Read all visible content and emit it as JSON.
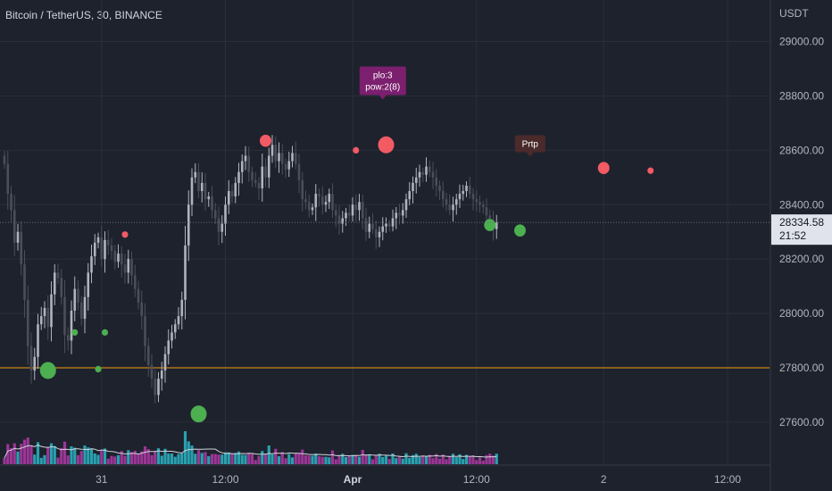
{
  "header": {
    "title": "Bitcoin / TetherUS, 30, BINANCE"
  },
  "axis": {
    "currency": "USDT"
  },
  "colors": {
    "background": "#1e222d",
    "candle": "#b0b3bd",
    "candle_dark": "#4a4e59",
    "support_line": "#f59e0b",
    "bear_marker": "#f25a64",
    "bull_marker": "#4caf50",
    "vol_purple": "#b23aa8",
    "vol_teal": "#2bb6c7",
    "label_box": "#7b1f6e",
    "label_box2": "#4a2a2a"
  },
  "chart_data": {
    "type": "candlestick",
    "ylim": [
      27570,
      29120
    ],
    "y_ticks": [
      27600,
      27800,
      28000,
      28200,
      28400,
      28600,
      28800,
      29000
    ],
    "y_tick_labels": [
      "27600.00",
      "27800.00",
      "28000.00",
      "28200.00",
      "28400.00",
      "28600.00",
      "28800.00",
      "29000.00"
    ],
    "x_labels": [
      {
        "bar": 29,
        "text": "31",
        "bold": false
      },
      {
        "bar": 66,
        "text": "12:00",
        "bold": false
      },
      {
        "bar": 104,
        "text": "Apr",
        "bold": true
      },
      {
        "bar": 141,
        "text": "12:00",
        "bold": false
      },
      {
        "bar": 179,
        "text": "2",
        "bold": false
      },
      {
        "bar": 216,
        "text": "12:00",
        "bold": false
      }
    ],
    "last_price": "28334.58",
    "last_price_value": 28334.58,
    "countdown": "21:52",
    "support_level": 27800,
    "closes": [
      28550,
      28440,
      28380,
      28260,
      28300,
      28180,
      28050,
      27880,
      27790,
      27840,
      27960,
      27990,
      28020,
      27950,
      28070,
      28150,
      28130,
      28060,
      27920,
      27900,
      28010,
      28090,
      28040,
      27980,
      28060,
      28150,
      28210,
      28260,
      28280,
      28200,
      28270,
      28250,
      28230,
      28190,
      28220,
      28180,
      28150,
      28200,
      28140,
      28090,
      28040,
      27990,
      27880,
      27810,
      27760,
      27700,
      27760,
      27790,
      27850,
      27900,
      27930,
      27960,
      27990,
      28050,
      28250,
      28400,
      28500,
      28520,
      28450,
      28480,
      28420,
      28430,
      28380,
      28350,
      28300,
      28330,
      28400,
      28450,
      28430,
      28480,
      28520,
      28560,
      28580,
      28520,
      28490,
      28480,
      28460,
      28540,
      28500,
      28580,
      28620,
      28560,
      28590,
      28550,
      28530,
      28560,
      28590,
      28550,
      28490,
      28420,
      28410,
      28380,
      28390,
      28440,
      28430,
      28400,
      28410,
      28440,
      28380,
      28360,
      28330,
      28350,
      28370,
      28360,
      28400,
      28380,
      28410,
      28350,
      28300,
      28330,
      28310,
      28280,
      28300,
      28320,
      28330,
      28320,
      28350,
      28370,
      28360,
      28380,
      28420,
      28450,
      28480,
      28500,
      28520,
      28510,
      28540,
      28520,
      28500,
      28470,
      28450,
      28420,
      28400,
      28380,
      28400,
      28420,
      28440,
      28450,
      28470,
      28440,
      28420,
      28410,
      28400,
      28390,
      28360,
      28340,
      28310,
      28334.58
    ],
    "annotations": [
      {
        "lines": [
          "plo:3",
          "pow:2(8)"
        ],
        "bar": 113,
        "price": 28790,
        "style": "label_box"
      },
      {
        "lines": [
          "Prtp"
        ],
        "bar": 157,
        "price": 28580,
        "style": "label_box2"
      }
    ],
    "markers": [
      {
        "bar": 13,
        "price": 27790,
        "kind": "bull",
        "size": "large"
      },
      {
        "bar": 21,
        "price": 27930,
        "kind": "bull",
        "size": "small"
      },
      {
        "bar": 28,
        "price": 27795,
        "kind": "bull",
        "size": "small"
      },
      {
        "bar": 30,
        "price": 27930,
        "kind": "bull",
        "size": "small"
      },
      {
        "bar": 36,
        "price": 28290,
        "kind": "bear",
        "size": "small"
      },
      {
        "bar": 58,
        "price": 27630,
        "kind": "bull",
        "size": "large"
      },
      {
        "bar": 78,
        "price": 28635,
        "kind": "bear",
        "size": "medium"
      },
      {
        "bar": 105,
        "price": 28600,
        "kind": "bear",
        "size": "small"
      },
      {
        "bar": 114,
        "price": 28620,
        "kind": "bear",
        "size": "large"
      },
      {
        "bar": 145,
        "price": 28325,
        "kind": "bull",
        "size": "medium"
      },
      {
        "bar": 154,
        "price": 28305,
        "kind": "bull",
        "size": "medium"
      },
      {
        "bar": 179,
        "price": 28535,
        "kind": "bear",
        "size": "medium"
      },
      {
        "bar": 193,
        "price": 28525,
        "kind": "bear",
        "size": "small"
      }
    ]
  }
}
